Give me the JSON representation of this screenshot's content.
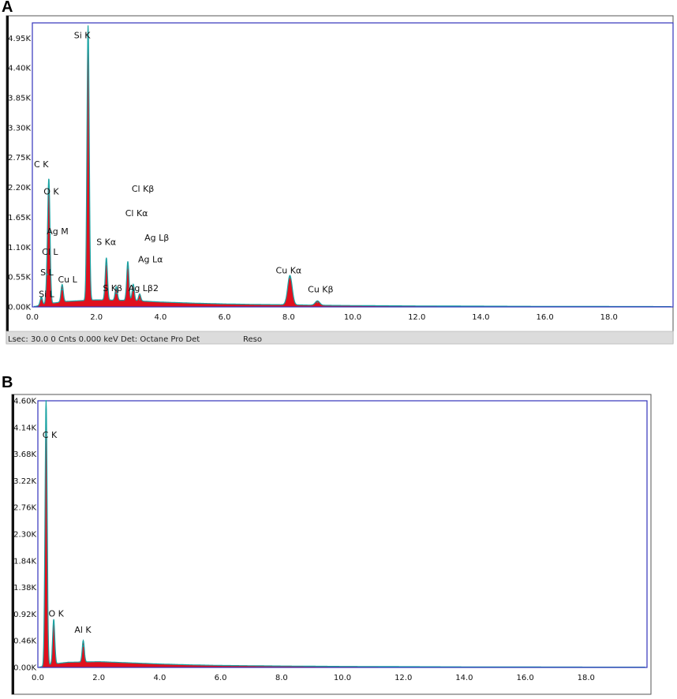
{
  "panels": [
    {
      "label": "A"
    },
    {
      "label": "B"
    }
  ],
  "status_bar_a": {
    "text": "Lsec: 30.0 0 Cnts  0.000 keV Det: Octane Pro Det",
    "reso": "Reso"
  },
  "colors": {
    "fill": "#e0101e",
    "spectrum_line": "#1aa3a3",
    "frame": "#3333bb",
    "panel_border": "#555555",
    "left_bar": "#111111",
    "status_bar": "#dcdcdc"
  },
  "chart_data": [
    {
      "type": "area",
      "title": "",
      "xlabel": "",
      "ylabel": "",
      "xlim": [
        0,
        20
      ],
      "ylim": [
        0,
        5230
      ],
      "x_ticks": [
        "0.0",
        "2.0",
        "4.0",
        "6.0",
        "8.0",
        "10.0",
        "12.0",
        "14.0",
        "16.0",
        "18.0"
      ],
      "y_ticks": [
        "0.00K",
        "0.55K",
        "1.10K",
        "1.65K",
        "2.20K",
        "2.75K",
        "3.30K",
        "3.85K",
        "4.40K",
        "4.95K"
      ],
      "y_tick_values": [
        0,
        550,
        1100,
        1650,
        2200,
        2750,
        3300,
        3850,
        4400,
        4950
      ],
      "baseline": [
        {
          "x": 0.1,
          "y": 10
        },
        {
          "x": 0.3,
          "y": 40
        },
        {
          "x": 1.0,
          "y": 100
        },
        {
          "x": 2.0,
          "y": 130
        },
        {
          "x": 3.0,
          "y": 120
        },
        {
          "x": 4.0,
          "y": 90
        },
        {
          "x": 5.0,
          "y": 70
        },
        {
          "x": 6.0,
          "y": 55
        },
        {
          "x": 7.0,
          "y": 45
        },
        {
          "x": 8.0,
          "y": 40
        },
        {
          "x": 9.0,
          "y": 30
        },
        {
          "x": 10.0,
          "y": 25
        },
        {
          "x": 12.0,
          "y": 18
        },
        {
          "x": 14.0,
          "y": 14
        },
        {
          "x": 16.0,
          "y": 10
        },
        {
          "x": 18.0,
          "y": 8
        },
        {
          "x": 19.9,
          "y": 6
        }
      ],
      "peaks": [
        {
          "element": "C K",
          "x": 0.28,
          "y": 150
        },
        {
          "element": "O K",
          "x": 0.52,
          "y": 2070
        },
        {
          "element": "Ag M",
          "x": 0.47,
          "y": 600
        },
        {
          "element": "Cu L",
          "x": 0.93,
          "y": 320
        },
        {
          "element": "Si K",
          "x": 1.74,
          "y": 5060
        },
        {
          "element": "S Kα",
          "x": 2.31,
          "y": 780
        },
        {
          "element": "Cl Kα",
          "x": 2.62,
          "y": 250
        },
        {
          "element": "Ag Lα",
          "x": 2.98,
          "y": 720
        },
        {
          "element": "Ag Lβ",
          "x": 3.15,
          "y": 300
        },
        {
          "element": "Ag Lβ2",
          "x": 3.35,
          "y": 130
        },
        {
          "element": "Cu Kα",
          "x": 8.04,
          "y": 540
        },
        {
          "element": "Cu Kβ",
          "x": 8.9,
          "y": 80
        }
      ],
      "annotations": [
        {
          "text": "Si K",
          "x": 1.3,
          "y": 4950
        },
        {
          "text": "C  K",
          "x": 0.05,
          "y": 2570
        },
        {
          "text": "O  K",
          "x": 0.35,
          "y": 2070
        },
        {
          "text": "Cl Kβ",
          "x": 3.1,
          "y": 2120
        },
        {
          "text": "Cl Kα",
          "x": 2.9,
          "y": 1670
        },
        {
          "text": "Ag M",
          "x": 0.45,
          "y": 1340
        },
        {
          "text": "S  Kα",
          "x": 2.0,
          "y": 1140
        },
        {
          "text": "Ag Lβ",
          "x": 3.5,
          "y": 1220
        },
        {
          "text": "Cl L",
          "x": 0.3,
          "y": 960
        },
        {
          "text": "Ag Lα",
          "x": 3.3,
          "y": 820
        },
        {
          "text": "Cu Kα",
          "x": 7.6,
          "y": 620
        },
        {
          "text": "S  L",
          "x": 0.25,
          "y": 580
        },
        {
          "text": "Cu L",
          "x": 0.8,
          "y": 450
        },
        {
          "text": "S  Kβ",
          "x": 2.2,
          "y": 290
        },
        {
          "text": "Ag Lβ2",
          "x": 3.0,
          "y": 290
        },
        {
          "text": "Cu Kβ",
          "x": 8.6,
          "y": 270
        },
        {
          "text": "Si L",
          "x": 0.2,
          "y": 180
        }
      ]
    },
    {
      "type": "area",
      "title": "",
      "xlabel": "",
      "ylabel": "",
      "xlim": [
        0,
        20
      ],
      "ylim": [
        0,
        4600
      ],
      "x_ticks": [
        "0.0",
        "2.0",
        "4.0",
        "6.0",
        "8.0",
        "10.0",
        "12.0",
        "14.0",
        "16.0",
        "18.0"
      ],
      "y_ticks": [
        "0.00K",
        "0.46K",
        "0.92K",
        "1.38K",
        "1.84K",
        "2.30K",
        "2.76K",
        "3.22K",
        "3.68K",
        "4.14K",
        "4.60K"
      ],
      "y_tick_values": [
        0,
        460,
        920,
        1380,
        1840,
        2300,
        2760,
        3220,
        3680,
        4140,
        4600
      ],
      "baseline": [
        {
          "x": 0.1,
          "y": 10
        },
        {
          "x": 0.5,
          "y": 60
        },
        {
          "x": 1.0,
          "y": 90
        },
        {
          "x": 2.0,
          "y": 100
        },
        {
          "x": 3.0,
          "y": 80
        },
        {
          "x": 4.0,
          "y": 60
        },
        {
          "x": 5.0,
          "y": 45
        },
        {
          "x": 6.0,
          "y": 35
        },
        {
          "x": 8.0,
          "y": 25
        },
        {
          "x": 10.0,
          "y": 18
        },
        {
          "x": 12.0,
          "y": 14
        },
        {
          "x": 14.0,
          "y": 10
        },
        {
          "x": 16.0,
          "y": 8
        },
        {
          "x": 18.0,
          "y": 6
        },
        {
          "x": 19.9,
          "y": 5
        }
      ],
      "peaks": [
        {
          "element": "C K",
          "x": 0.27,
          "y": 4600
        },
        {
          "element": "O K",
          "x": 0.52,
          "y": 770
        },
        {
          "element": "Al K",
          "x": 1.49,
          "y": 370
        }
      ],
      "annotations": [
        {
          "text": "C  K",
          "x": 0.15,
          "y": 3960
        },
        {
          "text": "O  K",
          "x": 0.35,
          "y": 880
        },
        {
          "text": "Al K",
          "x": 1.2,
          "y": 600
        }
      ]
    }
  ]
}
